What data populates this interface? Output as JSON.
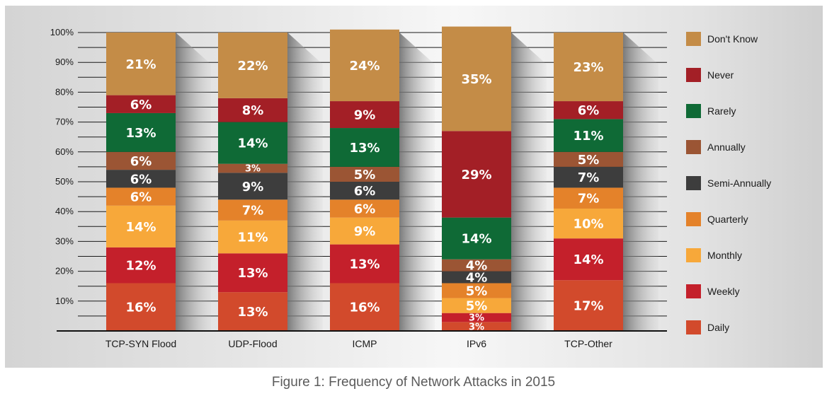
{
  "caption": "Figure 1: Frequency of Network Attacks in 2015",
  "colors": {
    "Daily": "#d24a2c",
    "Weekly": "#c4202b",
    "Monthly": "#f7a83a",
    "Quarterly": "#e4822a",
    "Semi-Annually": "#3d3d3d",
    "Annually": "#9b5534",
    "Rarely": "#0f6a36",
    "Never": "#a31f26",
    "Don't Know": "#c48c47"
  },
  "chart_data": {
    "type": "bar",
    "stacked": true,
    "title": "",
    "xlabel": "",
    "ylabel": "",
    "ylim": [
      0,
      100
    ],
    "yticks": [
      "10%",
      "20%",
      "30%",
      "40%",
      "50%",
      "60%",
      "70%",
      "80%",
      "90%",
      "100%"
    ],
    "grid": true,
    "legend_position": "right",
    "categories": [
      "TCP-SYN Flood",
      "UDP-Flood",
      "ICMP",
      "IPv6",
      "TCP-Other"
    ],
    "series": [
      {
        "name": "Daily",
        "values": [
          16,
          13,
          16,
          3,
          17
        ]
      },
      {
        "name": "Weekly",
        "values": [
          12,
          13,
          13,
          3,
          14
        ]
      },
      {
        "name": "Monthly",
        "values": [
          14,
          11,
          9,
          5,
          10
        ]
      },
      {
        "name": "Quarterly",
        "values": [
          6,
          7,
          6,
          5,
          7
        ]
      },
      {
        "name": "Semi-Annually",
        "values": [
          6,
          9,
          6,
          4,
          7
        ]
      },
      {
        "name": "Annually",
        "values": [
          6,
          3,
          5,
          4,
          5
        ]
      },
      {
        "name": "Rarely",
        "values": [
          13,
          14,
          13,
          14,
          11
        ]
      },
      {
        "name": "Never",
        "values": [
          6,
          8,
          9,
          29,
          6
        ]
      },
      {
        "name": "Don't Know",
        "values": [
          21,
          22,
          24,
          35,
          23
        ]
      }
    ]
  }
}
